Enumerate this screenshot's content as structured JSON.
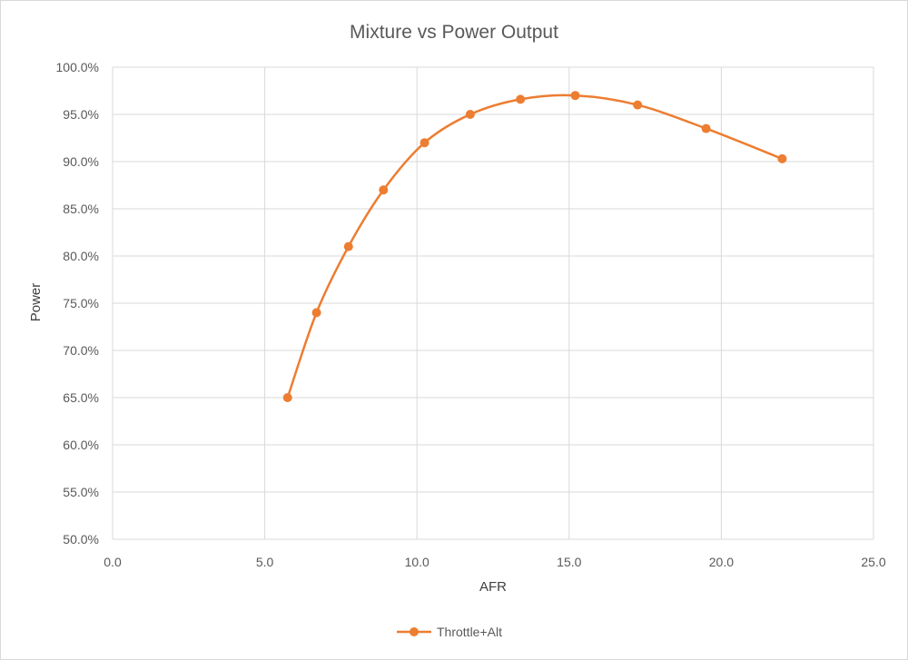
{
  "chart_data": {
    "type": "scatter",
    "title": "Mixture vs Power Output",
    "xlabel": "AFR",
    "ylabel": "Power",
    "xlim": [
      0,
      25
    ],
    "ylim": [
      50,
      100
    ],
    "x_ticks": [
      "0.0",
      "5.0",
      "10.0",
      "15.0",
      "20.0",
      "25.0"
    ],
    "y_ticks": [
      "50.0%",
      "55.0%",
      "60.0%",
      "65.0%",
      "70.0%",
      "75.0%",
      "80.0%",
      "85.0%",
      "90.0%",
      "95.0%",
      "100.0%"
    ],
    "grid": true,
    "smooth_line": true,
    "legend_position": "bottom",
    "series": [
      {
        "name": "Throttle+Alt",
        "color": "#ED7D31",
        "points": [
          {
            "x": 5.75,
            "y": 65.0
          },
          {
            "x": 6.7,
            "y": 74.0
          },
          {
            "x": 7.75,
            "y": 81.0
          },
          {
            "x": 8.9,
            "y": 87.0
          },
          {
            "x": 10.25,
            "y": 92.0
          },
          {
            "x": 11.75,
            "y": 95.0
          },
          {
            "x": 13.4,
            "y": 96.6
          },
          {
            "x": 15.2,
            "y": 97.0
          },
          {
            "x": 17.25,
            "y": 96.0
          },
          {
            "x": 19.5,
            "y": 93.5
          },
          {
            "x": 22.0,
            "y": 90.3
          }
        ]
      }
    ]
  }
}
